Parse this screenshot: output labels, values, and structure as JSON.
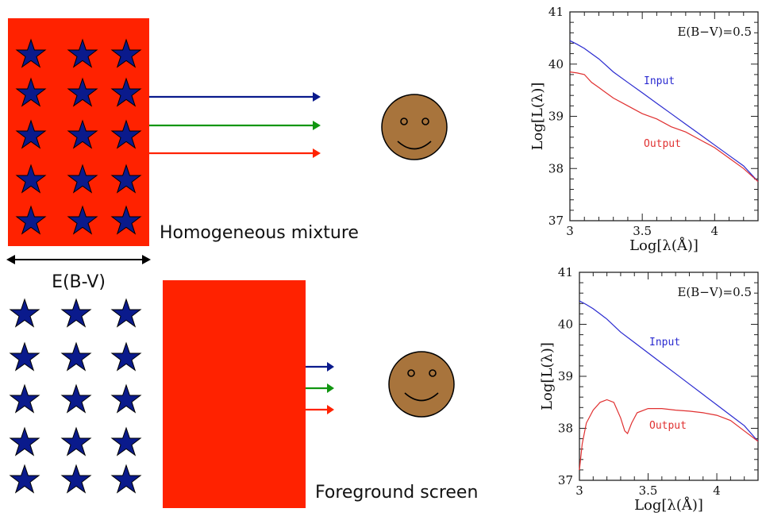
{
  "colors": {
    "dust": "#ff2200",
    "star": "#0a1a8c",
    "arrow_blue": "#0a1a8c",
    "arrow_green": "#119611",
    "arrow_red": "#ff2200",
    "face": "#a8743c",
    "input_line": "#2a2ad0",
    "output_line": "#e03030"
  },
  "icons": {
    "star": "star-icon",
    "observer": "smiley-face-icon",
    "arrow": "arrow-right-icon",
    "width_arrow": "double-arrow-icon"
  },
  "top_panel": {
    "label": "Homogeneous mixture"
  },
  "bottom_panel": {
    "label": "Foreground screen"
  },
  "width_label": "E(B-V)",
  "chart_data": [
    {
      "type": "line",
      "annotation": "E(B−V)=0.5",
      "xlabel": "Log[λ(Å)]",
      "ylabel": "Log[L(λ)]",
      "xlim": [
        3.0,
        4.3
      ],
      "ylim": [
        37,
        41
      ],
      "x_ticks": [
        "3",
        "3.5",
        "4"
      ],
      "y_ticks": [
        "37",
        "38",
        "39",
        "40",
        "41"
      ],
      "series": [
        {
          "name": "Input",
          "x": [
            3.0,
            3.05,
            3.1,
            3.15,
            3.2,
            3.3,
            3.4,
            3.5,
            3.6,
            3.7,
            3.8,
            3.9,
            4.0,
            4.1,
            4.2,
            4.3
          ],
          "y": [
            40.45,
            40.38,
            40.3,
            40.2,
            40.1,
            39.85,
            39.65,
            39.45,
            39.25,
            39.05,
            38.85,
            38.65,
            38.45,
            38.25,
            38.05,
            37.75
          ]
        },
        {
          "name": "Output",
          "x": [
            3.0,
            3.05,
            3.1,
            3.15,
            3.2,
            3.3,
            3.4,
            3.5,
            3.6,
            3.7,
            3.8,
            3.9,
            4.0,
            4.1,
            4.2,
            4.3
          ],
          "y": [
            39.85,
            39.83,
            39.8,
            39.65,
            39.55,
            39.35,
            39.2,
            39.05,
            38.95,
            38.8,
            38.7,
            38.55,
            38.4,
            38.2,
            38.0,
            37.75
          ]
        }
      ]
    },
    {
      "type": "line",
      "annotation": "E(B−V)=0.5",
      "xlabel": "Log[λ(Å)]",
      "ylabel": "Log[L(λ)]",
      "xlim": [
        3.0,
        4.3
      ],
      "ylim": [
        37,
        41
      ],
      "x_ticks": [
        "3",
        "3.5",
        "4"
      ],
      "y_ticks": [
        "37",
        "38",
        "39",
        "40",
        "41"
      ],
      "series": [
        {
          "name": "Input",
          "x": [
            3.0,
            3.05,
            3.1,
            3.15,
            3.2,
            3.3,
            3.4,
            3.5,
            3.6,
            3.7,
            3.8,
            3.9,
            4.0,
            4.1,
            4.2,
            4.3
          ],
          "y": [
            40.45,
            40.38,
            40.3,
            40.2,
            40.1,
            39.85,
            39.65,
            39.45,
            39.25,
            39.05,
            38.85,
            38.65,
            38.45,
            38.25,
            38.05,
            37.75
          ]
        },
        {
          "name": "Output",
          "x": [
            3.0,
            3.02,
            3.05,
            3.1,
            3.15,
            3.2,
            3.25,
            3.3,
            3.33,
            3.35,
            3.38,
            3.42,
            3.5,
            3.6,
            3.7,
            3.8,
            3.9,
            4.0,
            4.1,
            4.2,
            4.3
          ],
          "y": [
            37.2,
            37.7,
            38.1,
            38.35,
            38.5,
            38.55,
            38.5,
            38.2,
            37.95,
            37.9,
            38.1,
            38.3,
            38.38,
            38.38,
            38.35,
            38.33,
            38.3,
            38.25,
            38.15,
            37.95,
            37.75
          ]
        }
      ]
    }
  ]
}
